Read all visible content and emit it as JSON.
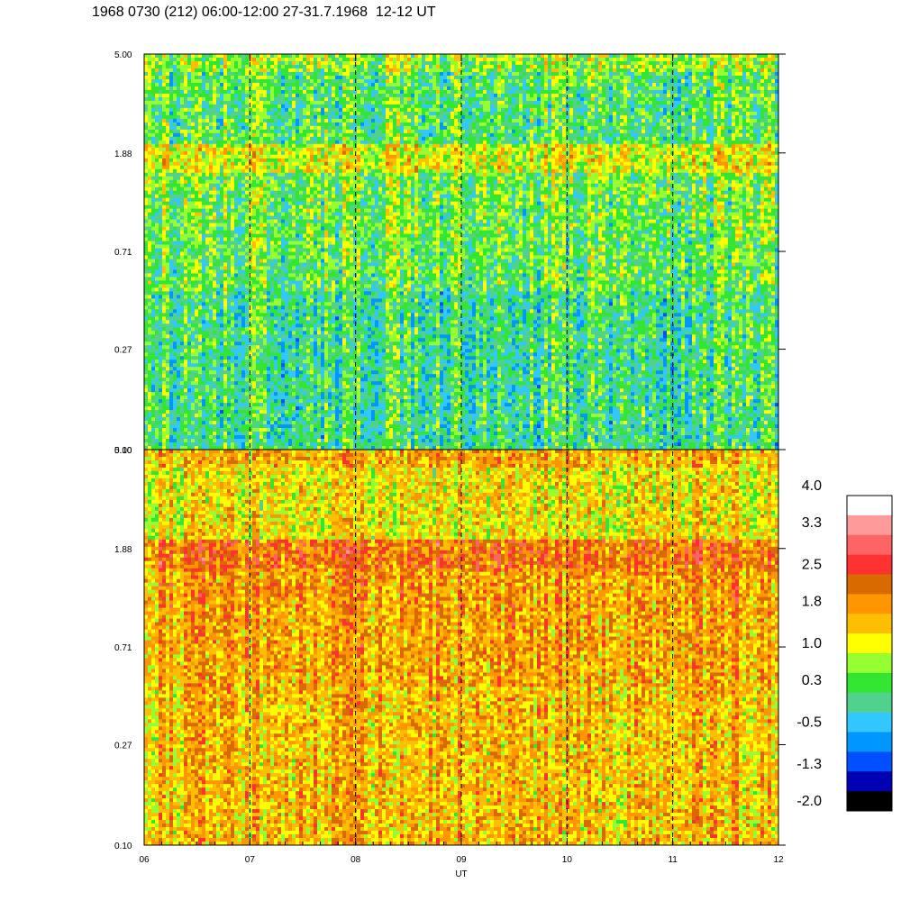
{
  "title": "1968 0730 (212) 06:00-12:00 27-31.7.1968  12-12 UT",
  "chart_data": {
    "type": "heatmap",
    "title": "1968 0730 (212) 06:00-12:00 27-31.7.1968  12-12 UT",
    "xlabel": "UT",
    "x_ticks": [
      "06",
      "07",
      "08",
      "09",
      "10",
      "11",
      "12"
    ],
    "x_range": [
      6,
      12
    ],
    "y_scale": "log",
    "y_range": [
      0.1,
      5.0
    ],
    "panels": [
      {
        "name": "",
        "y_ticks": [
          "0.10",
          "0.27",
          "0.71",
          "1.88",
          "5.00"
        ],
        "description_levels": {
          "low": 0.2,
          "mid": 0.6,
          "band_1_88": 1.2,
          "top": 0.4
        }
      },
      {
        "name": "",
        "y_ticks": [
          "0.10",
          "0.27",
          "0.71",
          "1.88",
          "5.00"
        ],
        "description_levels": {
          "low": 1.6,
          "mid": 1.9,
          "band_1_88": 2.2,
          "top": 1.3
        }
      }
    ],
    "dashed_vertical_lines_at": [
      7,
      8,
      9,
      10,
      11
    ],
    "colorbar": {
      "labels": [
        "4.0",
        "3.3",
        "2.5",
        "1.8",
        "1.0",
        "0.3",
        "-0.5",
        "-1.3",
        "-2.0"
      ],
      "min": -2.0,
      "max": 4.0,
      "colors": [
        "#ffffff",
        "#ff9a9a",
        "#ff6464",
        "#ff3232",
        "#d96a00",
        "#ff9600",
        "#ffbe00",
        "#ffff00",
        "#96ff32",
        "#32e632",
        "#50d28c",
        "#32c8ff",
        "#0096ff",
        "#0050ff",
        "#0000b4",
        "#000000"
      ]
    }
  }
}
